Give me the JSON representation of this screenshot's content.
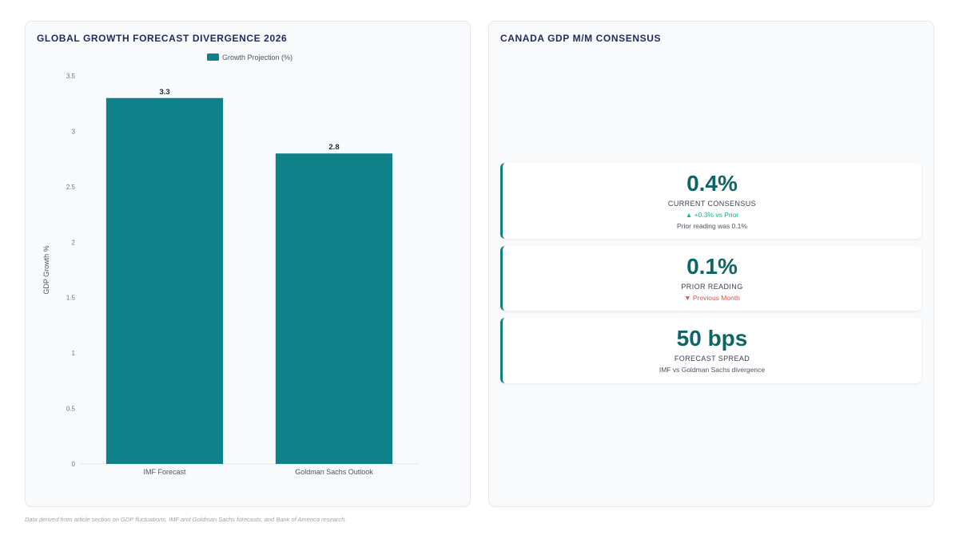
{
  "left_panel": {
    "title": "GLOBAL GROWTH FORECAST DIVERGENCE 2026"
  },
  "right_panel": {
    "title": "CANADA GDP M/M CONSENSUS",
    "cards": [
      {
        "value": "0.4%",
        "label": "CURRENT CONSENSUS",
        "change": "▲ +0.3% vs Prior",
        "note": "Prior reading was 0.1%"
      },
      {
        "value": "0.1%",
        "label": "PRIOR READING",
        "change": "▼ Previous Month"
      },
      {
        "value": "50 bps",
        "label": "FORECAST SPREAD",
        "note": "IMF vs Goldman Sachs divergence"
      }
    ]
  },
  "colors": {
    "bar": "#0e8189",
    "accent": "#0e8080",
    "up": "#10b981",
    "down": "#e05252"
  },
  "chart_data": {
    "type": "bar",
    "categories": [
      "IMF Forecast",
      "Goldman Sachs Outlook"
    ],
    "series": [
      {
        "name": "Growth Projection (%)",
        "values": [
          3.3,
          2.8
        ]
      }
    ],
    "data_labels": [
      "3.3",
      "2.8"
    ],
    "ylabel": "GDP Growth %",
    "xlabel": "",
    "ylim": [
      0,
      3.5
    ],
    "yticks": [
      "0",
      "0.5",
      "1",
      "1.5",
      "2",
      "2.5",
      "3",
      "3.5"
    ],
    "legend_position": "top-center",
    "grid": false
  },
  "footer": "Data derived from article section on GDP fluctuations, IMF and Goldman Sachs forecasts, and Bank of America research."
}
